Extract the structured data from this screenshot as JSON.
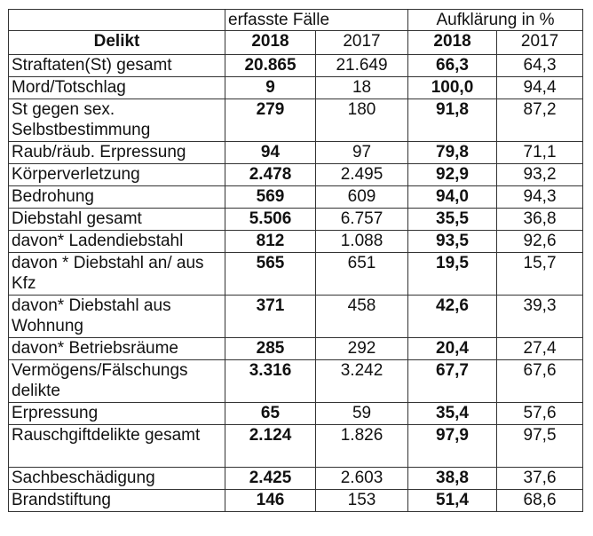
{
  "header": {
    "group_cases": "erfasste Fälle",
    "group_clearance": "Aufklärung in %",
    "delikt": "Delikt",
    "y2018": "2018",
    "y2017": "2017"
  },
  "rows": [
    {
      "delikt": "Straftaten(St) gesamt",
      "cases_2018": "20.865",
      "cases_2017": "21.649",
      "rate_2018": "66,3",
      "rate_2017": "64,3"
    },
    {
      "delikt": "Mord/Totschlag",
      "cases_2018": "9",
      "cases_2017": "18",
      "rate_2018": "100,0",
      "rate_2017": "94,4"
    },
    {
      "delikt": "St gegen sex. Selbstbestimmung",
      "cases_2018": "279",
      "cases_2017": "180",
      "rate_2018": "91,8",
      "rate_2017": "87,2"
    },
    {
      "delikt": "Raub/räub. Erpressung",
      "cases_2018": "94",
      "cases_2017": "97",
      "rate_2018": "79,8",
      "rate_2017": "71,1"
    },
    {
      "delikt": "Körperverletzung",
      "cases_2018": "2.478",
      "cases_2017": "2.495",
      "rate_2018": "92,9",
      "rate_2017": "93,2"
    },
    {
      "delikt": "Bedrohung",
      "cases_2018": "569",
      "cases_2017": "609",
      "rate_2018": "94,0",
      "rate_2017": "94,3"
    },
    {
      "delikt": "Diebstahl gesamt",
      "cases_2018": "5.506",
      "cases_2017": "6.757",
      "rate_2018": "35,5",
      "rate_2017": "36,8"
    },
    {
      "delikt": "davon* Ladendiebstahl",
      "cases_2018": "812",
      "cases_2017": "1.088",
      "rate_2018": "93,5",
      "rate_2017": "92,6"
    },
    {
      "delikt": "davon * Diebstahl an/ aus Kfz",
      "cases_2018": "565",
      "cases_2017": "651",
      "rate_2018": "19,5",
      "rate_2017": "15,7"
    },
    {
      "delikt": "davon* Diebstahl aus Wohnung",
      "cases_2018": "371",
      "cases_2017": "458",
      "rate_2018": "42,6",
      "rate_2017": "39,3"
    },
    {
      "delikt": "davon* Betriebsräume",
      "cases_2018": "285",
      "cases_2017": "292",
      "rate_2018": "20,4",
      "rate_2017": "27,4"
    },
    {
      "delikt": "Vermögens/Fälschungs delikte",
      "cases_2018": "3.316",
      "cases_2017": "3.242",
      "rate_2018": "67,7",
      "rate_2017": "67,6"
    },
    {
      "delikt": "Erpressung",
      "cases_2018": "65",
      "cases_2017": "59",
      "rate_2018": "35,4",
      "rate_2017": "57,6"
    },
    {
      "delikt": "Rauschgiftdelikte gesamt",
      "cases_2018": "2.124",
      "cases_2017": "1.826",
      "rate_2018": "97,9",
      "rate_2017": "97,5"
    },
    {
      "delikt": "Sachbeschädigung",
      "cases_2018": "2.425",
      "cases_2017": "2.603",
      "rate_2018": "38,8",
      "rate_2017": "37,6"
    },
    {
      "delikt": "Brandstiftung",
      "cases_2018": "146",
      "cases_2017": "153",
      "rate_2018": "51,4",
      "rate_2017": "68,6"
    }
  ]
}
